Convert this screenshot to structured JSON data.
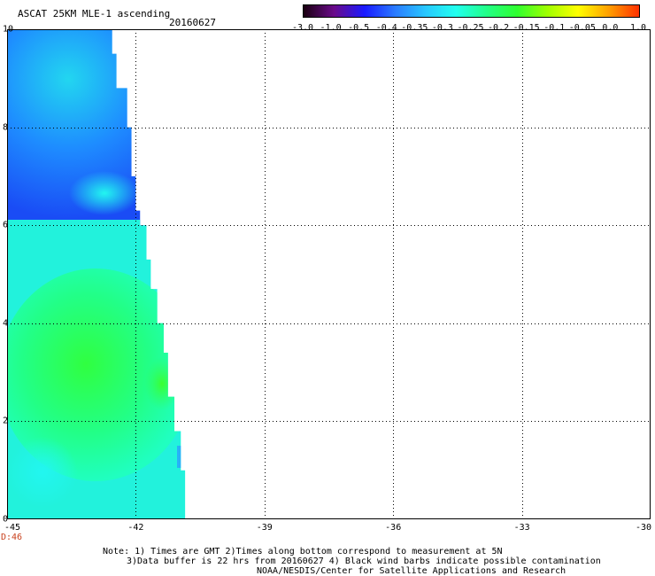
{
  "header": {
    "title": "ASCAT 25KM MLE-1 ascending",
    "date": "20160627"
  },
  "colorbar": {
    "labels": [
      "-3.0",
      "-1.0",
      "-0.5",
      "-0.4",
      "-0.35",
      "-0.3",
      "-0.25",
      "-0.2",
      "-0.15",
      "-0.1",
      "-0.05",
      "0.0",
      "1.0"
    ],
    "colors": [
      "#1a0010",
      "#6a0a8a",
      "#1a1aff",
      "#2a7bff",
      "#28c8ff",
      "#22ffee",
      "#22ff88",
      "#30ff30",
      "#a0ff00",
      "#ffff00",
      "#ffa000",
      "#ff3000"
    ]
  },
  "axes": {
    "y_labels": [
      "10",
      "8",
      "6",
      "4",
      "2",
      "0"
    ],
    "x_labels": [
      "-45",
      "-42",
      "-39",
      "-36",
      "-33",
      "-30"
    ],
    "time_label": "D:46"
  },
  "map": {
    "lat_range": [
      0,
      10
    ],
    "lon_range": [
      -45,
      -30
    ],
    "gridlines": "dotted",
    "swath_edge_lon": [
      [
        10,
        -42.7
      ],
      [
        9.5,
        -42.55
      ],
      [
        8.8,
        -42.45
      ],
      [
        8.0,
        -42.2
      ],
      [
        7.0,
        -42.1
      ],
      [
        6.3,
        -42.0
      ],
      [
        6.0,
        -41.9
      ],
      [
        5.3,
        -41.75
      ],
      [
        4.7,
        -41.65
      ],
      [
        4.0,
        -41.5
      ],
      [
        3.4,
        -41.35
      ],
      [
        2.5,
        -41.25
      ],
      [
        1.8,
        -41.1
      ],
      [
        1.0,
        -40.95
      ],
      [
        0.5,
        -40.85
      ],
      [
        0,
        -40.85
      ]
    ]
  },
  "notes": {
    "line1": "Note: 1) Times are GMT 2)Times along bottom correspond to measurement at 5N",
    "line2": "3)Data buffer is 22 hrs from 20160627 4) Black wind barbs indicate possible contamination",
    "line3": "NOAA/NESDIS/Center for Satellite Applications and Research"
  }
}
